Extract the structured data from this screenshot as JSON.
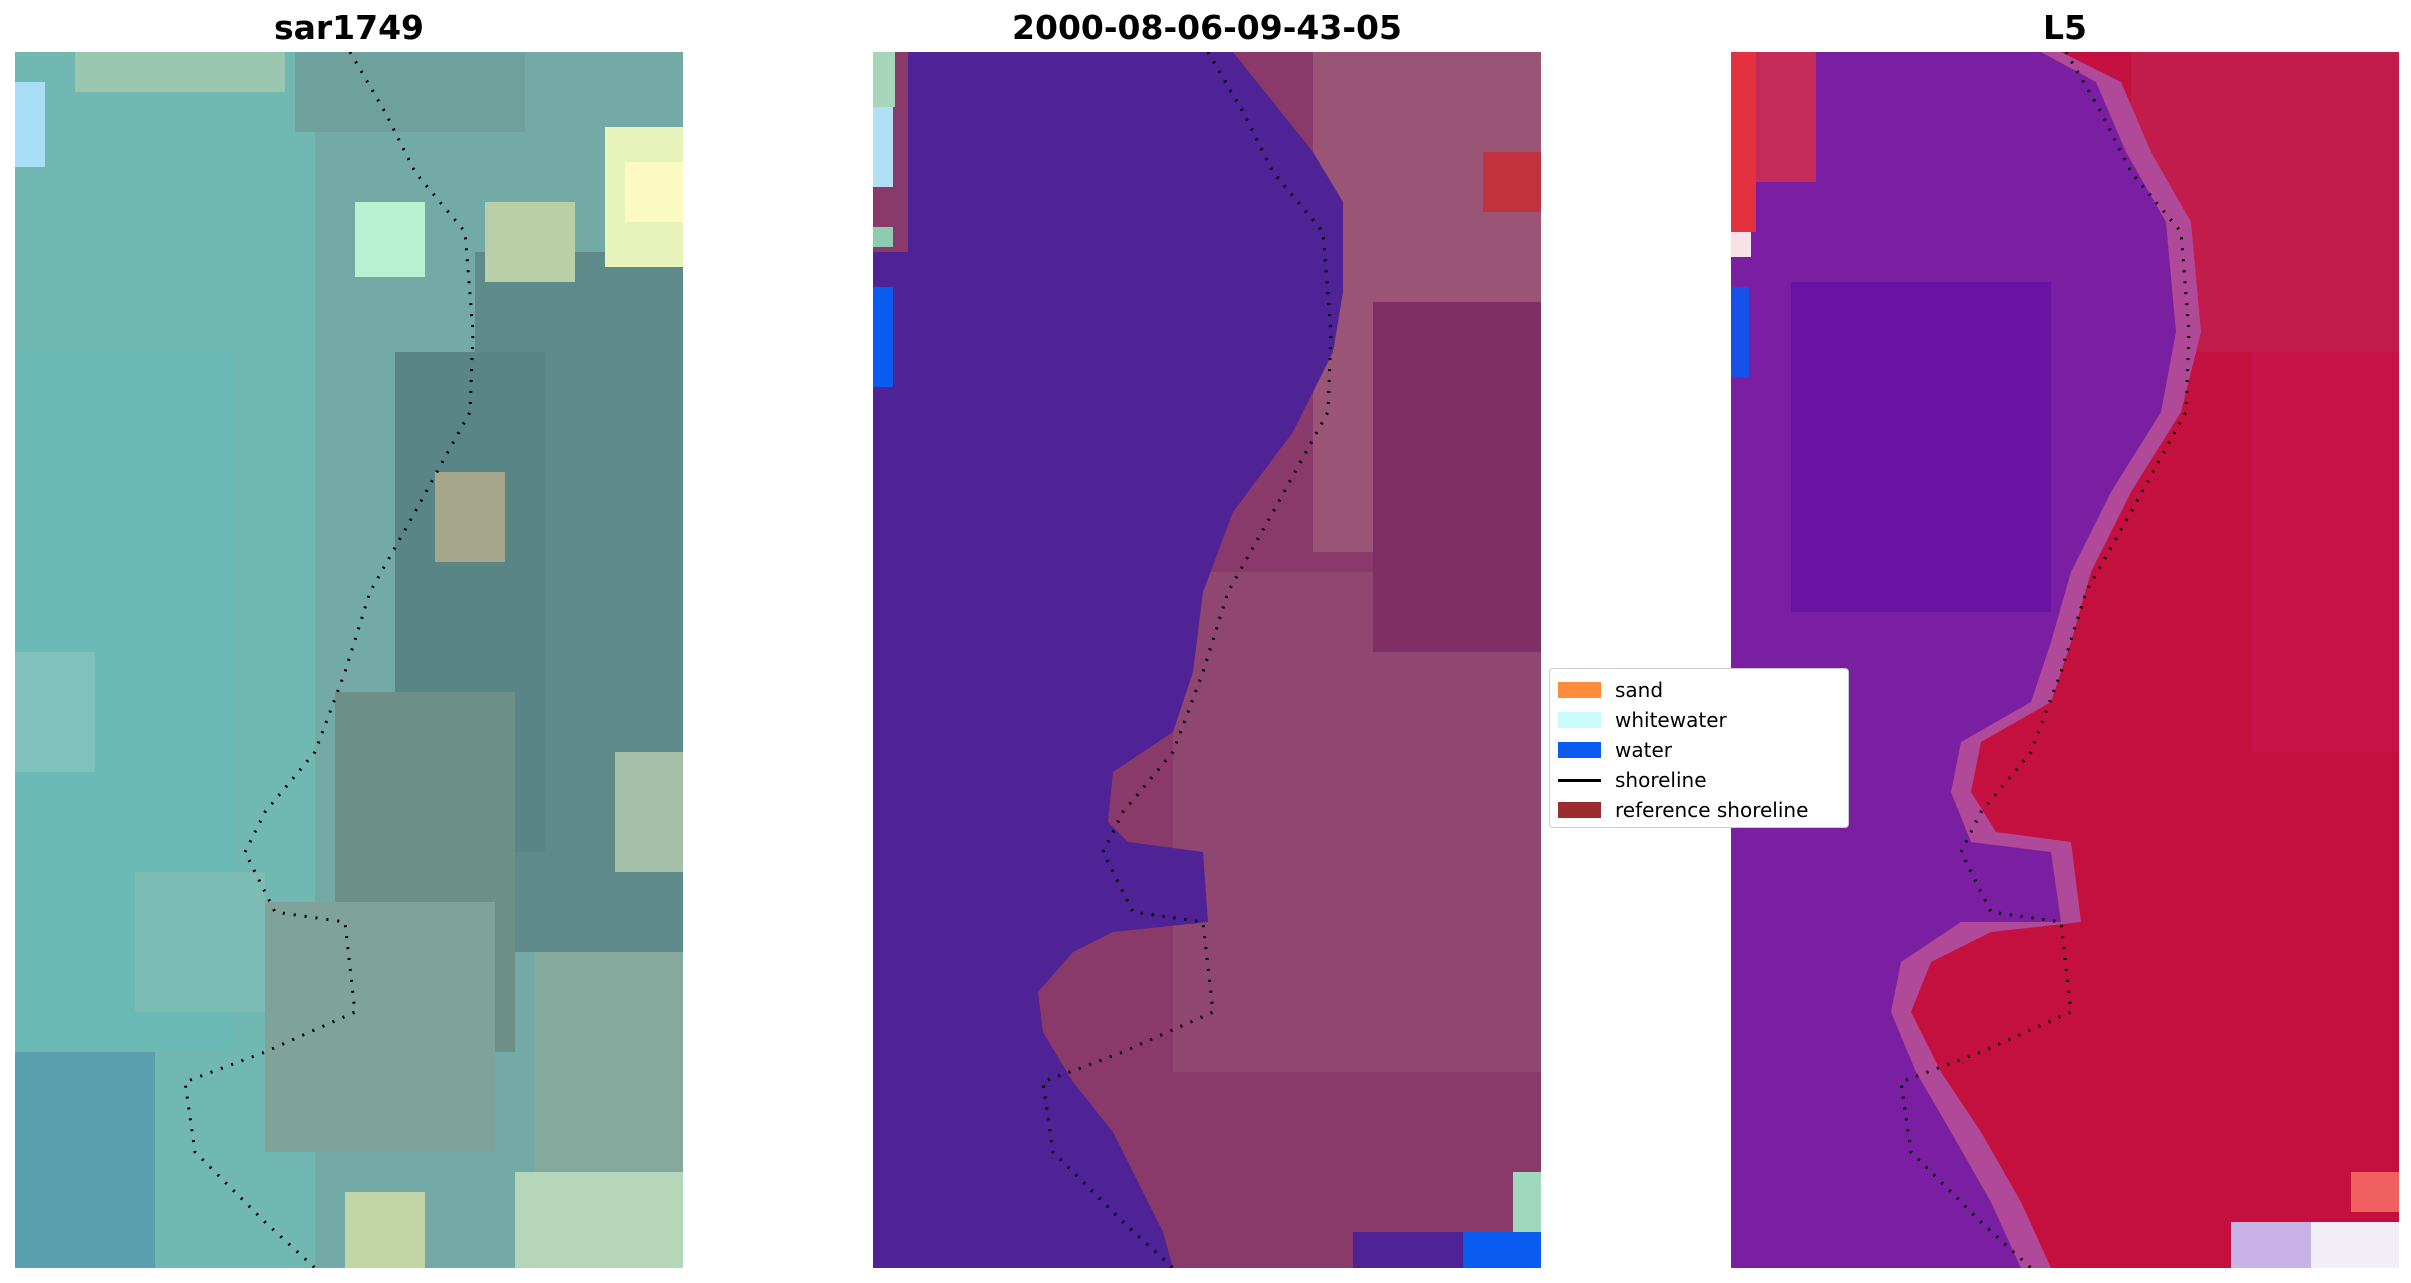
{
  "panels": [
    {
      "id": "sar",
      "title": "sar1749"
    },
    {
      "id": "class",
      "title": "2000-08-06-09-43-05"
    },
    {
      "id": "l5",
      "title": "L5"
    }
  ],
  "legend": {
    "items": [
      {
        "label": "sand",
        "color": "#ff8c3a",
        "kind": "patch"
      },
      {
        "label": "whitewater",
        "color": "#c8fcf8",
        "kind": "patch"
      },
      {
        "label": "water",
        "color": "#0a5cf0",
        "kind": "patch"
      },
      {
        "label": "shoreline",
        "color": "#000000",
        "kind": "line"
      },
      {
        "label": "reference shoreline",
        "color": "#9b2d30",
        "kind": "patch"
      }
    ]
  },
  "colors": {
    "sar_base": "#6fa7a2",
    "class_water": "#4f2395",
    "class_land": "#8a3a6a",
    "l5_water": "#7a1fa2",
    "l5_land": "#c4103e"
  }
}
